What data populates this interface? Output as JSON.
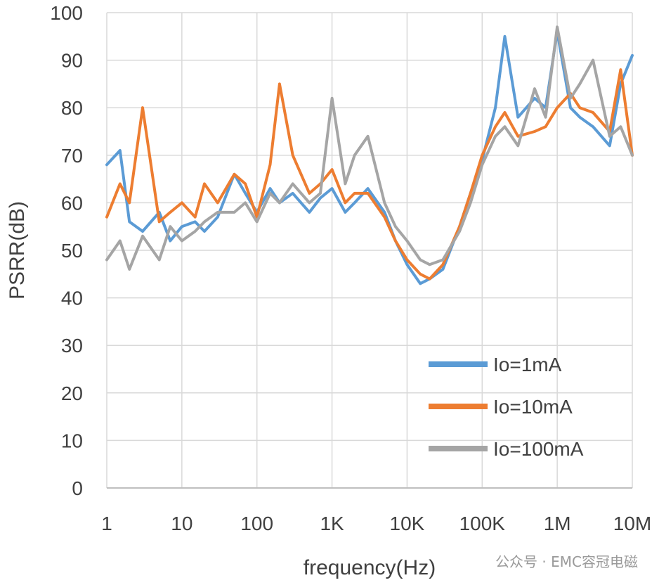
{
  "chart_data": {
    "type": "line",
    "xlabel": "frequency(Hz)",
    "ylabel": "PSRR(dB)",
    "xscale": "log",
    "xlim": [
      1,
      10000000
    ],
    "ylim": [
      0,
      100
    ],
    "grid": true,
    "legend_position": "bottom-right",
    "x_tick_values": [
      1,
      10,
      100,
      1000,
      10000,
      100000,
      1000000,
      10000000
    ],
    "x_tick_labels": [
      "1",
      "10",
      "100",
      "1K",
      "10K",
      "100K",
      "1M",
      "10M"
    ],
    "y_tick_values": [
      0,
      10,
      20,
      30,
      40,
      50,
      60,
      70,
      80,
      90,
      100
    ],
    "y_tick_labels": [
      "0",
      "10",
      "20",
      "30",
      "40",
      "50",
      "60",
      "70",
      "80",
      "90",
      "100"
    ],
    "x": [
      1,
      1.5,
      2,
      3,
      5,
      7,
      10,
      15,
      20,
      30,
      50,
      70,
      100,
      150,
      200,
      300,
      500,
      700,
      1000,
      1500,
      2000,
      3000,
      5000,
      7000,
      10000,
      15000,
      20000,
      30000,
      50000,
      70000,
      100000,
      150000,
      200000,
      300000,
      500000,
      700000,
      1000000,
      1500000,
      2000000,
      3000000,
      5000000,
      7000000,
      10000000
    ],
    "series": [
      {
        "name": "Io=1mA",
        "color": "#5B9BD5",
        "values": [
          68,
          71,
          56,
          54,
          58,
          52,
          55,
          56,
          54,
          57,
          66,
          62,
          58,
          63,
          60,
          62,
          58,
          61,
          63,
          58,
          60,
          63,
          58,
          52,
          47,
          43,
          44,
          46,
          55,
          62,
          69,
          80,
          95,
          78,
          82,
          80,
          96,
          80,
          78,
          76,
          72,
          85,
          91
        ]
      },
      {
        "name": "Io=10mA",
        "color": "#ED7D31",
        "values": [
          57,
          64,
          60,
          80,
          56,
          58,
          60,
          57,
          64,
          60,
          66,
          64,
          57,
          68,
          85,
          70,
          62,
          64,
          67,
          60,
          62,
          62,
          57,
          52,
          48,
          45,
          44,
          47,
          55,
          62,
          70,
          76,
          79,
          74,
          75,
          76,
          80,
          83,
          80,
          79,
          75,
          88,
          70
        ]
      },
      {
        "name": "Io=100mA",
        "color": "#A5A5A5",
        "values": [
          48,
          52,
          46,
          53,
          48,
          55,
          52,
          54,
          56,
          58,
          58,
          60,
          56,
          62,
          60,
          64,
          60,
          62,
          82,
          64,
          70,
          74,
          60,
          55,
          52,
          48,
          47,
          48,
          54,
          60,
          68,
          74,
          76,
          72,
          84,
          78,
          97,
          82,
          85,
          90,
          74,
          76,
          70
        ]
      }
    ]
  },
  "watermark": "公众号 · EMC容冠电磁"
}
